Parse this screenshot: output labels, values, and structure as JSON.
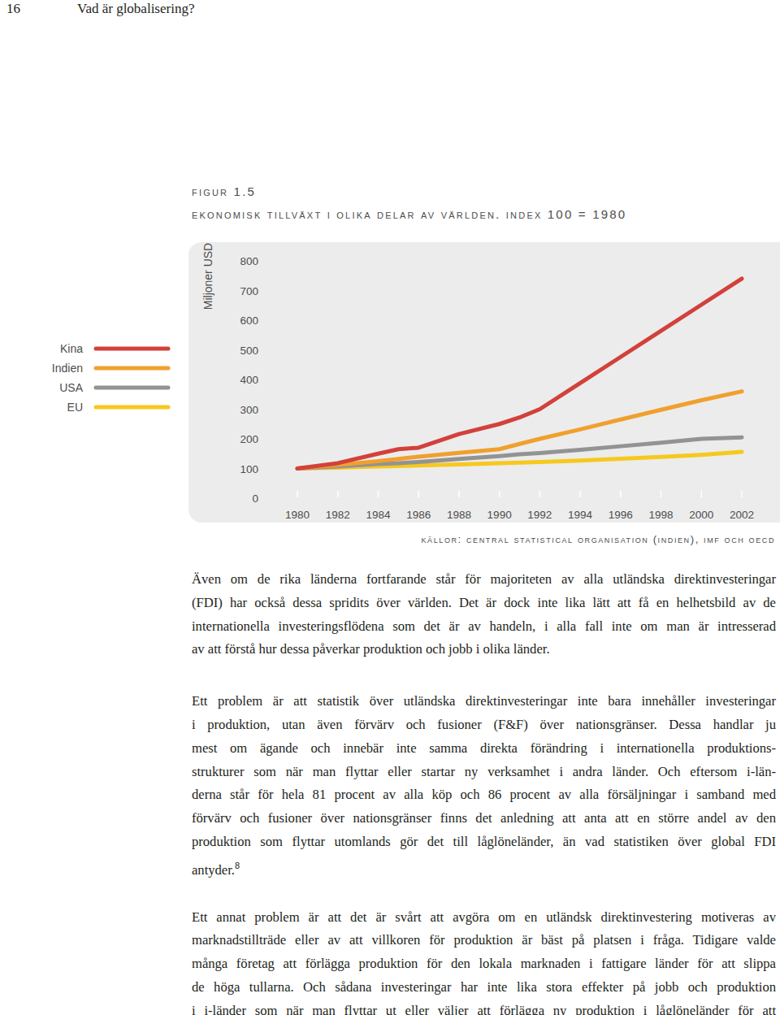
{
  "header": {
    "page_number": "16",
    "running_title": "Vad är globalisering?"
  },
  "figure_label": "figur 1.5",
  "chart_data": {
    "type": "line",
    "title": "ekonomisk tillväxt i olika delar av världen. index 100 = 1980",
    "ylabel": "Miljoner USD",
    "x": [
      1980,
      1982,
      1984,
      1985,
      1986,
      1988,
      1990,
      1991,
      1992,
      1994,
      1996,
      1998,
      2000,
      2002
    ],
    "series": [
      {
        "name": "Kina",
        "color": "#d2413a",
        "values": [
          100,
          118,
          150,
          165,
          170,
          216,
          250,
          272,
          300,
          388,
          476,
          564,
          652,
          740
        ]
      },
      {
        "name": "Indien",
        "color": "#f0a02e",
        "values": [
          100,
          112,
          125,
          132,
          140,
          153,
          165,
          183,
          200,
          232,
          265,
          298,
          330,
          360
        ]
      },
      {
        "name": "USA",
        "color": "#939393",
        "values": [
          100,
          107,
          115,
          118,
          122,
          132,
          142,
          148,
          152,
          163,
          175,
          187,
          200,
          205
        ]
      },
      {
        "name": "EU",
        "color": "#f7c81e",
        "values": [
          100,
          103,
          107,
          108,
          110,
          114,
          118,
          120,
          122,
          127,
          133,
          139,
          146,
          156
        ]
      }
    ],
    "xlim": [
      1980,
      2002
    ],
    "xticks": [
      1980,
      1982,
      1984,
      1986,
      1988,
      1990,
      1992,
      1994,
      1996,
      1998,
      2000,
      2002
    ],
    "ylim": [
      0,
      800
    ],
    "yticks": [
      0,
      100,
      200,
      300,
      400,
      500,
      600,
      700,
      800
    ],
    "grid": false,
    "legend": "left"
  },
  "source": "källor: central statistical organisation (indien), imf och oecd",
  "paragraphs": [
    {
      "lines": [
        "Även om de rika länderna fortfarande står för majoriteten av alla utländska direktinvesteringar",
        "(FDI) har också dessa spridits över världen. Det är dock inte lika lätt att få en helhetsbild av de",
        "internationella investeringsflödena som det är av handeln, i alla fall inte om man är intresserad",
        "av att förstå hur dessa påverkar produktion och jobb i olika länder."
      ]
    },
    {
      "lines": [
        "Ett problem är att statistik över utländska direktinvesteringar inte bara innehåller investeringar",
        "i produktion, utan även förvärv och fusioner (F&F) över nationsgränser. Dessa handlar ju",
        "mest om ägande och innebär inte samma direkta förändring i internationella produktions-",
        "strukturer som när man flyttar eller startar ny verksamhet i andra länder. Och eftersom i-län-",
        "derna står för hela 81 procent av alla köp och 86 procent av alla försäljningar i samband med",
        "förvärv och fusioner över nationsgränser finns det anledning att anta att en större andel av den",
        "produktion som flyttar utomlands gör det till låglöneländer, än vad statistiken över global FDI",
        "antyder."
      ],
      "footnote": "8"
    },
    {
      "lines": [
        "Ett annat problem är att det är svårt att avgöra om en utländsk direktinvestering motiveras av",
        "marknadstillträde eller av att villkoren för produktion är bäst på platsen i fråga. Tidigare valde",
        "många företag att förlägga produktion för den lokala marknaden i fattigare länder för att slippa",
        "de höga tullarna. Och sådana investeringar har inte lika stora effekter på jobb och produktion",
        "i i-länder som när man flyttar ut eller väljer att förlägga ny produktion i låglöneländer för att"
      ]
    }
  ]
}
